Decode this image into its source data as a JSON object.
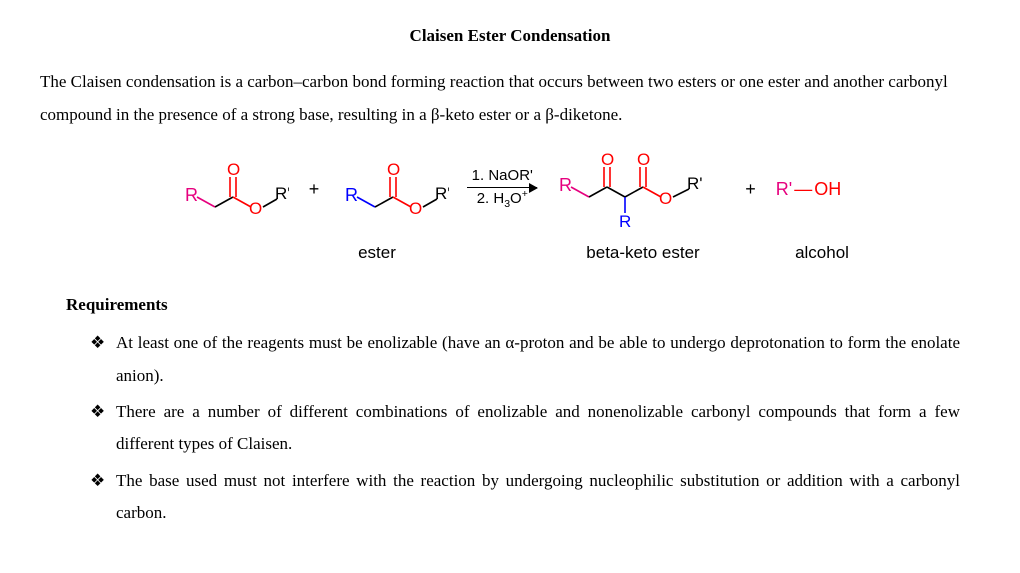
{
  "title": "Claisen Ester Condensation",
  "intro": "The Claisen condensation is a carbon–carbon bond forming reaction that occurs between two esters or one ester and another carbonyl compound in the presence of a strong base, resulting in a β-keto ester or a β-diketone.",
  "scheme": {
    "colors": {
      "R_pink": "#e6007e",
      "O_red": "#ff0000",
      "R_blue": "#0000ff",
      "bond_black": "#000000",
      "text_black": "#000000"
    },
    "font_family": "Arial, Helvetica, sans-serif",
    "font_size_pt": 14,
    "reagents_top": "1. NaOR'",
    "reagents_bottom_html": "2. H<sub>3</sub>O<sup>+</sup>",
    "plus": "+",
    "labels": {
      "ester": "ester",
      "beta_keto": "beta-keto ester",
      "alcohol": "alcohol"
    },
    "alcohol_text_parts": {
      "r": "R'",
      "dash": "—",
      "oh": "OH"
    }
  },
  "requirements_heading": "Requirements",
  "requirements": [
    "At least one of the reagents must be enolizable (have an α-proton and be able to undergo deprotonation to form the enolate anion).",
    "There are a number of different combinations of enolizable and nonenolizable carbonyl compounds that form a few different types of Claisen.",
    "The base used must not interfere with the reaction by undergoing nucleophilic substitution or addition with a carbonyl carbon."
  ]
}
